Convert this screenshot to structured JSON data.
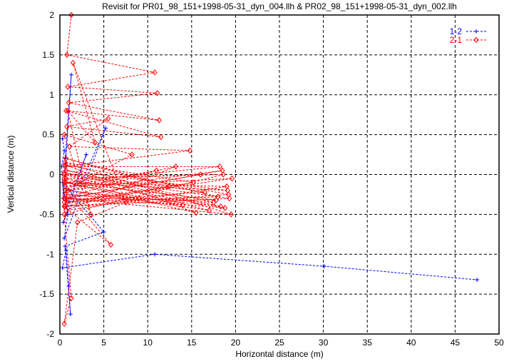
{
  "chart_data": {
    "type": "line",
    "title": "Revisit for PR01_98_151+1998-05-31_dyn_004.llh & PR02_98_151+1998-05-31_dyn_002.llh",
    "xlabel": "Horizontal distance (m)",
    "ylabel": "Vertical distance (m)",
    "xlim": [
      0,
      50
    ],
    "ylim": [
      -2,
      2
    ],
    "xticks": [
      "0",
      "5",
      "10",
      "15",
      "20",
      "25",
      "30",
      "35",
      "40",
      "45",
      "50"
    ],
    "yticks": [
      "-2",
      "-1.5",
      "-1",
      "-0.5",
      "0",
      "0.5",
      "1",
      "1.5",
      "2"
    ],
    "grid": true,
    "legend_position": "top-right",
    "series": [
      {
        "name": "1-2",
        "color": "#0000ff",
        "marker": "plus",
        "x": [
          0.3,
          0.5,
          0.2,
          0.4,
          1.3,
          0.6,
          0.8,
          3.0,
          0.4,
          5.2,
          0.5,
          0.9,
          0.3,
          5.0,
          0.6,
          1.2,
          1.0,
          0.7,
          0.3,
          10.8,
          30.1,
          47.5
        ],
        "y": [
          0.45,
          0.3,
          0.1,
          -0.3,
          1.25,
          0.2,
          -0.4,
          0.25,
          -0.6,
          0.58,
          -0.8,
          -0.5,
          -0.1,
          -0.72,
          -0.9,
          -1.75,
          -1.4,
          -0.95,
          -1.17,
          -1.0,
          -1.15,
          -1.32
        ]
      },
      {
        "name": "2-1",
        "color": "#ff0000",
        "marker": "diamond",
        "x": [
          1.3,
          0.8,
          10.8,
          0.9,
          11.1,
          1.0,
          11.3,
          0.7,
          11.5,
          0.8,
          5.5,
          1.1,
          14.8,
          0.6,
          18.2,
          0.5,
          19.1,
          0.7,
          17.5,
          0.6,
          18.8,
          0.5,
          16.0,
          0.8,
          19.5,
          0.6,
          15.2,
          0.5,
          18.0,
          0.7,
          12.4,
          0.6,
          19.3,
          0.5,
          17.0,
          0.9,
          18.5,
          0.6,
          14.0,
          0.5,
          19.0,
          0.7,
          13.2,
          0.6,
          18.3,
          0.5,
          16.5,
          0.8,
          19.6,
          0.6,
          11.0,
          0.5,
          17.8,
          0.7,
          15.5,
          0.6,
          19.2,
          0.5,
          5.8,
          0.6,
          9.0,
          0.7,
          18.6,
          0.5,
          1.3,
          0.5,
          2.0,
          7.5,
          1.5,
          4.0,
          0.9,
          3.5,
          0.5,
          8.2,
          0.6
        ],
        "y": [
          2.0,
          1.5,
          1.28,
          1.1,
          1.02,
          0.9,
          0.68,
          0.8,
          0.47,
          0.6,
          0.7,
          0.35,
          0.3,
          0.1,
          0.1,
          -0.1,
          -0.2,
          0.05,
          -0.35,
          -0.25,
          -0.42,
          -0.05,
          0.0,
          -0.3,
          -0.5,
          0.15,
          -0.1,
          -0.35,
          -0.28,
          0.2,
          -0.15,
          -0.4,
          -0.3,
          0.0,
          -0.45,
          -0.2,
          0.05,
          -0.3,
          -0.38,
          -0.1,
          -0.15,
          -0.45,
          0.1,
          -0.2,
          -0.4,
          0.02,
          -0.22,
          -0.35,
          -0.05,
          -0.15,
          0.05,
          -0.3,
          -0.32,
          -0.1,
          -0.48,
          0.12,
          -0.25,
          -0.4,
          -0.88,
          -0.2,
          -0.3,
          -0.05,
          0.0,
          -0.5,
          -1.55,
          -1.87,
          -0.6,
          -0.35,
          1.4,
          0.4,
          0.8,
          -0.5,
          0.5,
          0.25,
          -0.2
        ]
      }
    ]
  }
}
